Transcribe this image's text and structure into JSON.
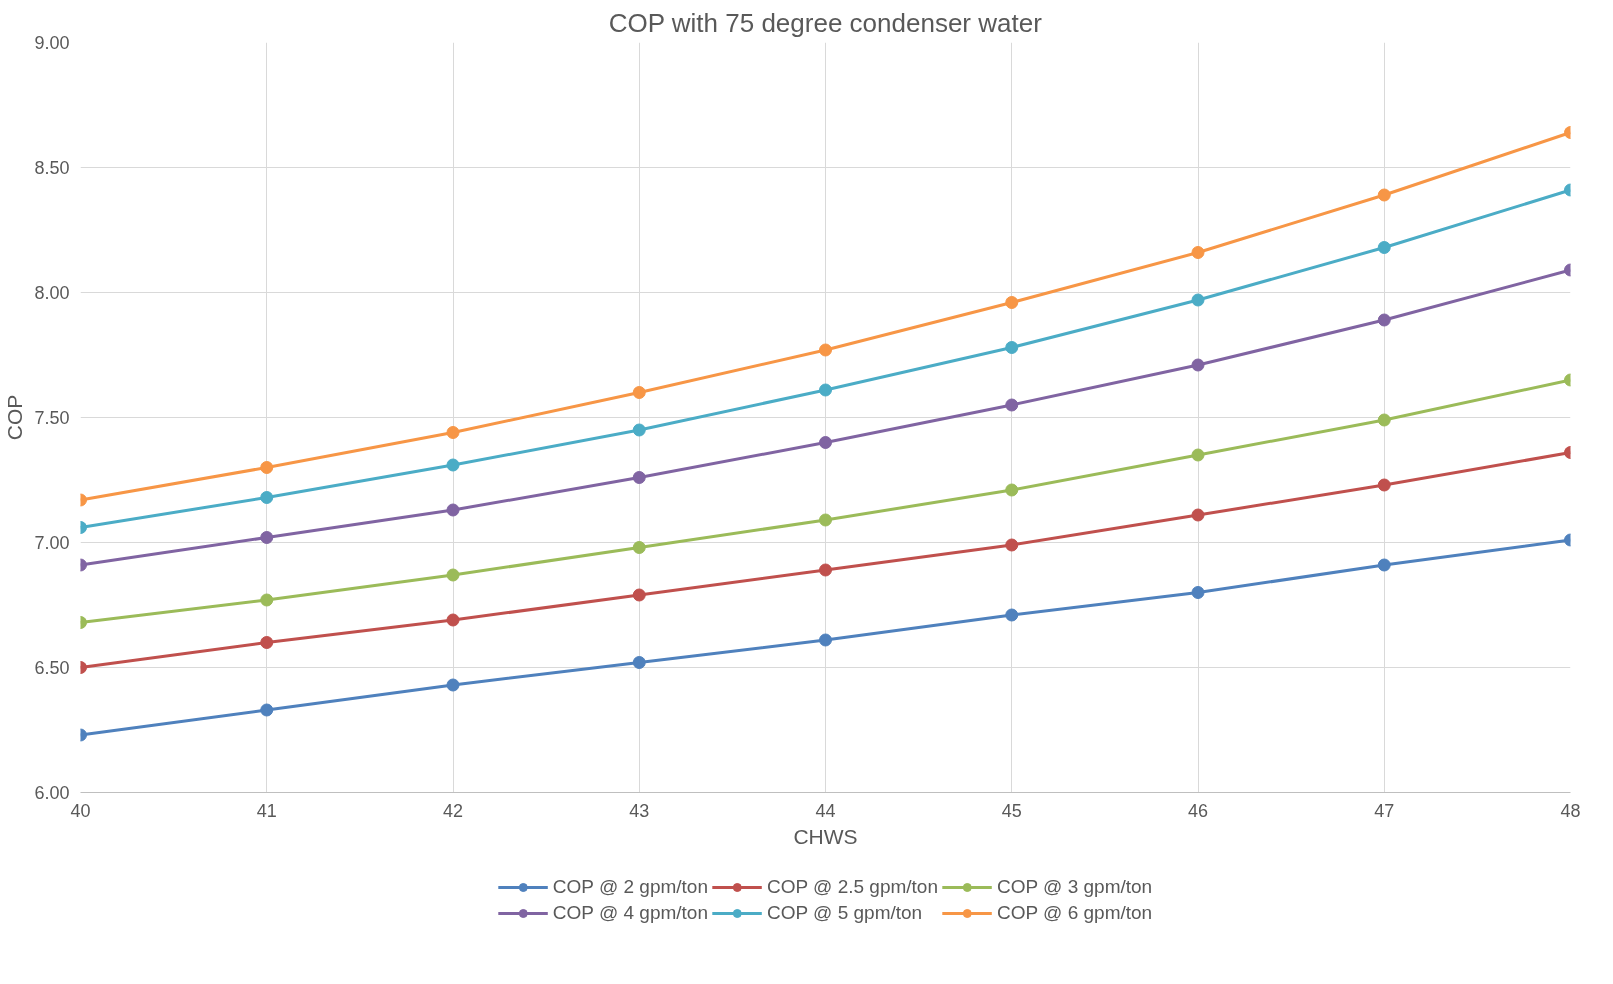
{
  "chart_data": {
    "type": "line",
    "title": "COP with 75 degree condenser water",
    "xlabel": "CHWS",
    "ylabel": "COP",
    "x": [
      40,
      41,
      42,
      43,
      44,
      45,
      46,
      47,
      48
    ],
    "series": [
      {
        "name": "COP @ 2 gpm/ton",
        "color": "#4f81bd",
        "values": [
          6.23,
          6.33,
          6.43,
          6.52,
          6.61,
          6.71,
          6.8,
          6.91,
          7.01
        ]
      },
      {
        "name": "COP @ 2.5 gpm/ton",
        "color": "#c0504d",
        "values": [
          6.5,
          6.6,
          6.69,
          6.79,
          6.89,
          6.99,
          7.11,
          7.23,
          7.36
        ]
      },
      {
        "name": "COP @ 3 gpm/ton",
        "color": "#9bbb59",
        "values": [
          6.68,
          6.77,
          6.87,
          6.98,
          7.09,
          7.21,
          7.35,
          7.49,
          7.65
        ]
      },
      {
        "name": "COP @ 4 gpm/ton",
        "color": "#8064a2",
        "values": [
          6.91,
          7.02,
          7.13,
          7.26,
          7.4,
          7.55,
          7.71,
          7.89,
          8.09
        ]
      },
      {
        "name": "COP @ 5 gpm/ton",
        "color": "#4bacc6",
        "values": [
          7.06,
          7.18,
          7.31,
          7.45,
          7.61,
          7.78,
          7.97,
          8.18,
          8.41
        ]
      },
      {
        "name": "COP @ 6 gpm/ton",
        "color": "#f79646",
        "values": [
          7.17,
          7.3,
          7.44,
          7.6,
          7.77,
          7.96,
          8.16,
          8.39,
          8.64
        ]
      }
    ],
    "xlim": [
      40,
      48
    ],
    "xticks": [
      40,
      41,
      42,
      43,
      44,
      45,
      46,
      47,
      48
    ],
    "ylim": [
      6,
      9
    ],
    "yticks": [
      {
        "value": 6,
        "label": "6.00"
      },
      {
        "value": 6.5,
        "label": "6.50"
      },
      {
        "value": 7,
        "label": "7.00"
      },
      {
        "value": 7.5,
        "label": "7.50"
      },
      {
        "value": 8,
        "label": "8.00"
      },
      {
        "value": 8.5,
        "label": "8.50"
      },
      {
        "value": 9,
        "label": "9.00"
      }
    ],
    "grid": true,
    "legend": "bottom",
    "marker": "circle",
    "line_style": "solid"
  }
}
